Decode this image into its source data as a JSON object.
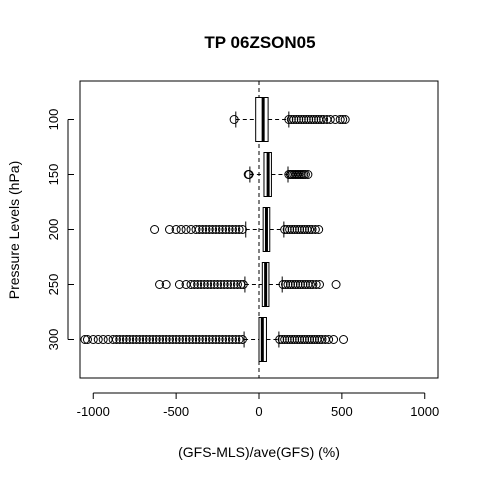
{
  "chart_data": {
    "type": "boxplot",
    "orientation": "horizontal",
    "title": "TP 06ZSON05",
    "xlabel": "(GFS-MLS)/ave(GFS) (%)",
    "ylabel": "Pressure Levels (hPa)",
    "xlim": [
      -1080,
      1080
    ],
    "ylim": [
      335,
      65
    ],
    "x_ticks": [
      -1000,
      -500,
      0,
      500,
      1000
    ],
    "x_tick_labels": [
      "-1000",
      "-500",
      "0",
      "500",
      "1000"
    ],
    "y_ticks": [
      100,
      150,
      200,
      250,
      300
    ],
    "y_tick_labels": [
      "100",
      "150",
      "200",
      "250",
      "300"
    ],
    "reference_line": {
      "x": 0,
      "style": "dashed",
      "orientation": "vertical"
    },
    "boxes": [
      {
        "level": 100,
        "whisker_low": -140,
        "q1": -20,
        "median": 25,
        "q3": 55,
        "whisker_high": 180,
        "outliers": [
          -150,
          180,
          195,
          210,
          225,
          240,
          255,
          270,
          285,
          300,
          315,
          330,
          345,
          360,
          375,
          390,
          410,
          430,
          460,
          490,
          505,
          520
        ]
      },
      {
        "level": 150,
        "whisker_low": -55,
        "q1": 30,
        "median": 55,
        "q3": 75,
        "whisker_high": 175,
        "outliers": [
          -65,
          -60,
          180,
          190,
          200,
          210,
          220,
          230,
          240,
          250,
          260,
          270,
          280,
          295
        ]
      },
      {
        "level": 200,
        "whisker_low": -80,
        "q1": 25,
        "median": 45,
        "q3": 65,
        "whisker_high": 150,
        "outliers": [
          -630,
          -540,
          -500,
          -470,
          -440,
          -410,
          -380,
          -360,
          -340,
          -320,
          -300,
          -280,
          -260,
          -240,
          -220,
          -200,
          -180,
          -160,
          -140,
          -120,
          -100,
          155,
          170,
          185,
          200,
          215,
          230,
          245,
          260,
          275,
          290,
          305,
          320,
          340,
          360
        ]
      },
      {
        "level": 250,
        "whisker_low": -85,
        "q1": 20,
        "median": 40,
        "q3": 60,
        "whisker_high": 140,
        "outliers": [
          -600,
          -560,
          -480,
          -440,
          -410,
          -390,
          -370,
          -350,
          -330,
          -310,
          -290,
          -270,
          -250,
          -230,
          -210,
          -190,
          -170,
          -150,
          -130,
          -110,
          -95,
          145,
          160,
          175,
          190,
          205,
          220,
          235,
          250,
          265,
          280,
          295,
          310,
          325,
          345,
          365,
          465
        ]
      },
      {
        "level": 300,
        "whisker_low": -90,
        "q1": 0,
        "median": 20,
        "q3": 45,
        "whisker_high": 120,
        "outliers": [
          -1050,
          -1035,
          -1000,
          -970,
          -940,
          -910,
          -880,
          -860,
          -840,
          -820,
          -800,
          -780,
          -760,
          -740,
          -720,
          -700,
          -680,
          -660,
          -640,
          -620,
          -600,
          -580,
          -560,
          -540,
          -520,
          -500,
          -480,
          -460,
          -440,
          -420,
          -400,
          -380,
          -360,
          -340,
          -320,
          -300,
          -280,
          -260,
          -240,
          -220,
          -200,
          -180,
          -160,
          -140,
          -120,
          -100,
          125,
          140,
          155,
          170,
          185,
          200,
          215,
          230,
          245,
          260,
          275,
          290,
          305,
          320,
          335,
          350,
          365,
          380,
          400,
          420,
          450,
          510
        ]
      }
    ]
  }
}
